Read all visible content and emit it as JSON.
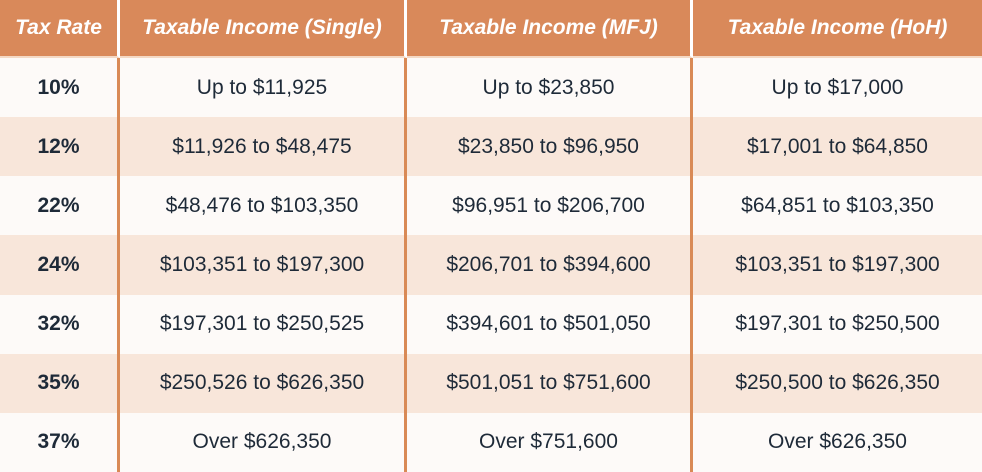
{
  "table": {
    "header": [
      "Tax Rate",
      "Taxable Income (Single)",
      "Taxable Income (MFJ)",
      "Taxable Income (HoH)"
    ],
    "rows": [
      [
        "10%",
        "Up to $11,925",
        "Up to $23,850",
        "Up to $17,000"
      ],
      [
        "12%",
        "$11,926 to $48,475",
        "$23,850 to $96,950",
        "$17,001 to $64,850"
      ],
      [
        "22%",
        "$48,476 to $103,350",
        "$96,951 to $206,700",
        "$64,851 to $103,350"
      ],
      [
        "24%",
        "$103,351 to $197,300",
        "$206,701 to $394,600",
        "$103,351 to $197,300"
      ],
      [
        "32%",
        "$197,301 to $250,525",
        "$394,601 to $501,050",
        "$197,301 to $250,500"
      ],
      [
        "35%",
        "$250,526 to $626,350",
        "$501,051 to $751,600",
        "$250,500 to $626,350"
      ],
      [
        "37%",
        "Over $626,350",
        "Over $751,600",
        "Over $626,350"
      ]
    ]
  }
}
